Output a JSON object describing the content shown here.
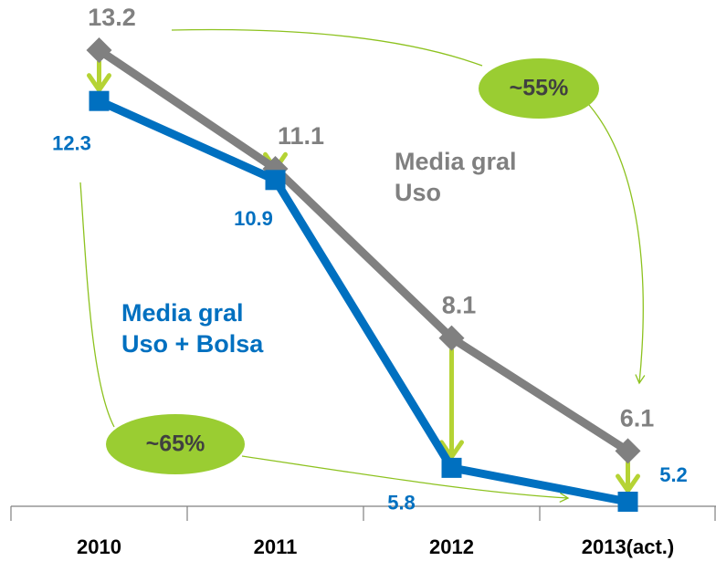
{
  "chart_data": {
    "type": "line",
    "categories": [
      "2010",
      "2011",
      "2012",
      "2013(act.)"
    ],
    "series": [
      {
        "name": "Media gral Uso",
        "color": "#808080",
        "marker": "diamond",
        "values": [
          13.2,
          11.1,
          8.1,
          6.1
        ]
      },
      {
        "name": "Media gral Uso + Bolsa",
        "color": "#0070c0",
        "marker": "square",
        "values": [
          12.3,
          10.9,
          5.8,
          5.2
        ]
      }
    ],
    "annotations": [
      "~55%",
      "~65%"
    ]
  }
}
